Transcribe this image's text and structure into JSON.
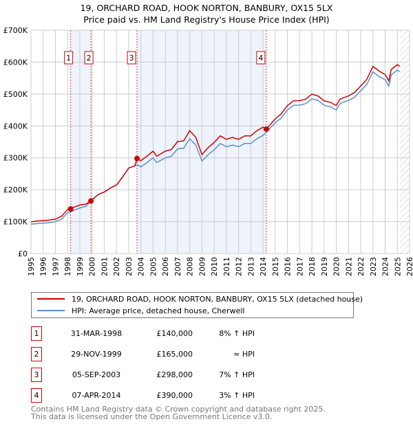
{
  "chart_data": {
    "type": "line",
    "title": "19, ORCHARD ROAD, HOOK NORTON, BANBURY, OX15 5LX",
    "subtitle": "Price paid vs. HM Land Registry's House Price Index (HPI)",
    "xlim": [
      1995,
      2026
    ],
    "ylim": [
      0,
      700000
    ],
    "x_ticks": [
      "1995",
      "1996",
      "1997",
      "1998",
      "1999",
      "2000",
      "2001",
      "2002",
      "2003",
      "2004",
      "2005",
      "2006",
      "2007",
      "2008",
      "2009",
      "2010",
      "2011",
      "2012",
      "2013",
      "2014",
      "2015",
      "2016",
      "2017",
      "2018",
      "2019",
      "2020",
      "2021",
      "2022",
      "2023",
      "2024",
      "2025",
      "2026"
    ],
    "y_ticks": [
      {
        "v": 0,
        "label": "£0"
      },
      {
        "v": 100000,
        "label": "£100K"
      },
      {
        "v": 200000,
        "label": "£200K"
      },
      {
        "v": 300000,
        "label": "£300K"
      },
      {
        "v": 400000,
        "label": "£400K"
      },
      {
        "v": 500000,
        "label": "£500K"
      },
      {
        "v": 600000,
        "label": "£600K"
      },
      {
        "v": 700000,
        "label": "£700K"
      }
    ],
    "grid": true,
    "x": [
      1995.0,
      1995.5,
      1996.0,
      1996.5,
      1997.0,
      1997.5,
      1998.0,
      1998.25,
      1998.5,
      1999.0,
      1999.5,
      1999.9,
      2000.5,
      2001.0,
      2001.5,
      2002.0,
      2002.5,
      2003.0,
      2003.5,
      2003.7,
      2004.0,
      2004.5,
      2005.0,
      2005.3,
      2006.0,
      2006.5,
      2007.0,
      2007.5,
      2008.0,
      2008.5,
      2009.0,
      2009.5,
      2010.0,
      2010.5,
      2011.0,
      2011.5,
      2012.0,
      2012.5,
      2013.0,
      2013.5,
      2014.0,
      2014.27,
      2015.0,
      2015.5,
      2016.0,
      2016.5,
      2017.0,
      2017.5,
      2018.0,
      2018.5,
      2019.0,
      2019.5,
      2020.0,
      2020.3,
      2021.0,
      2021.5,
      2022.0,
      2022.5,
      2023.0,
      2023.5,
      2024.0,
      2024.3,
      2024.5,
      2025.0,
      2025.2
    ],
    "series": [
      {
        "name": "19, ORCHARD ROAD, HOOK NORTON, BANBURY, OX15 5LX (detached house)",
        "color": "#cc0000",
        "values": [
          99,
          102,
          103,
          105,
          108,
          117,
          138,
          140,
          145,
          152,
          155,
          165,
          185,
          193,
          205,
          215,
          240,
          268,
          275,
          298,
          291,
          305,
          321,
          305,
          321,
          326,
          351,
          353,
          385,
          364,
          310,
          332,
          348,
          369,
          358,
          364,
          358,
          369,
          369,
          385,
          396,
          390,
          422,
          438,
          464,
          479,
          479,
          484,
          500,
          494,
          479,
          474,
          464,
          484,
          494,
          505,
          525,
          546,
          587,
          572,
          561,
          541,
          577,
          592,
          587
        ]
      },
      {
        "name": "HPI: Average price, detached house, Cherwell",
        "color": "#5b8fd0",
        "values": [
          92,
          94,
          95,
          97,
          100,
          108,
          128,
          130,
          135,
          143,
          148,
          165,
          185,
          193,
          205,
          215,
          240,
          268,
          275,
          278,
          272,
          285,
          300,
          285,
          300,
          305,
          328,
          330,
          360,
          340,
          290,
          310,
          325,
          345,
          335,
          340,
          335,
          345,
          345,
          360,
          370,
          380,
          410,
          425,
          450,
          465,
          465,
          470,
          485,
          480,
          465,
          460,
          450,
          470,
          480,
          490,
          510,
          530,
          570,
          555,
          545,
          525,
          560,
          575,
          570
        ]
      }
    ],
    "value_unit": "thousands GBP",
    "shaded_ranges": [
      [
        1998.25,
        1999.91
      ],
      [
        2003.68,
        2014.27
      ]
    ],
    "hatched_range": [
      2025.2,
      2026
    ],
    "sales": [
      {
        "n": "1",
        "x": 1998.25,
        "v": 140,
        "date": "31-MAR-1998",
        "price": "£140,000",
        "hpi": "8% ↑ HPI"
      },
      {
        "n": "2",
        "x": 1999.91,
        "v": 165,
        "date": "29-NOV-1999",
        "price": "£165,000",
        "hpi": "≈ HPI"
      },
      {
        "n": "3",
        "x": 2003.68,
        "v": 298,
        "date": "05-SEP-2003",
        "price": "£298,000",
        "hpi": "7% ↑ HPI"
      },
      {
        "n": "4",
        "x": 2014.27,
        "v": 390,
        "date": "07-APR-2014",
        "price": "£390,000",
        "hpi": "3% ↑ HPI"
      }
    ],
    "legend_position": "bottom"
  },
  "footer": [
    "Contains HM Land Registry data © Crown copyright and database right 2025.",
    "This data is licensed under the Open Government Licence v3.0."
  ]
}
